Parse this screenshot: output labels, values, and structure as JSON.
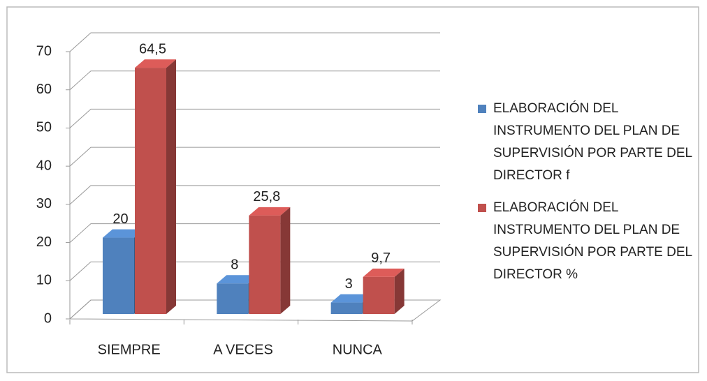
{
  "chart_data": {
    "type": "bar3d",
    "categories": [
      "SIEMPRE",
      "A VECES",
      "NUNCA"
    ],
    "series": [
      {
        "name": "ELABORACIÓN DEL INSTRUMENTO DEL PLAN DE SUPERVISIÓN POR PARTE DEL DIRECTOR f",
        "color": "#4f81bd",
        "values": [
          20,
          8,
          3
        ]
      },
      {
        "name": "ELABORACIÓN DEL INSTRUMENTO DEL PLAN DE SUPERVISIÓN POR PARTE DEL DIRECTOR %",
        "color": "#c0504d",
        "values": [
          64.5,
          25.8,
          9.7
        ],
        "value_labels": [
          "64,5",
          "25,8",
          "9,7"
        ]
      }
    ],
    "ylim": [
      0,
      70
    ],
    "yticks": [
      0,
      10,
      20,
      30,
      40,
      50,
      60,
      70
    ],
    "grid": true,
    "legend": "right"
  }
}
